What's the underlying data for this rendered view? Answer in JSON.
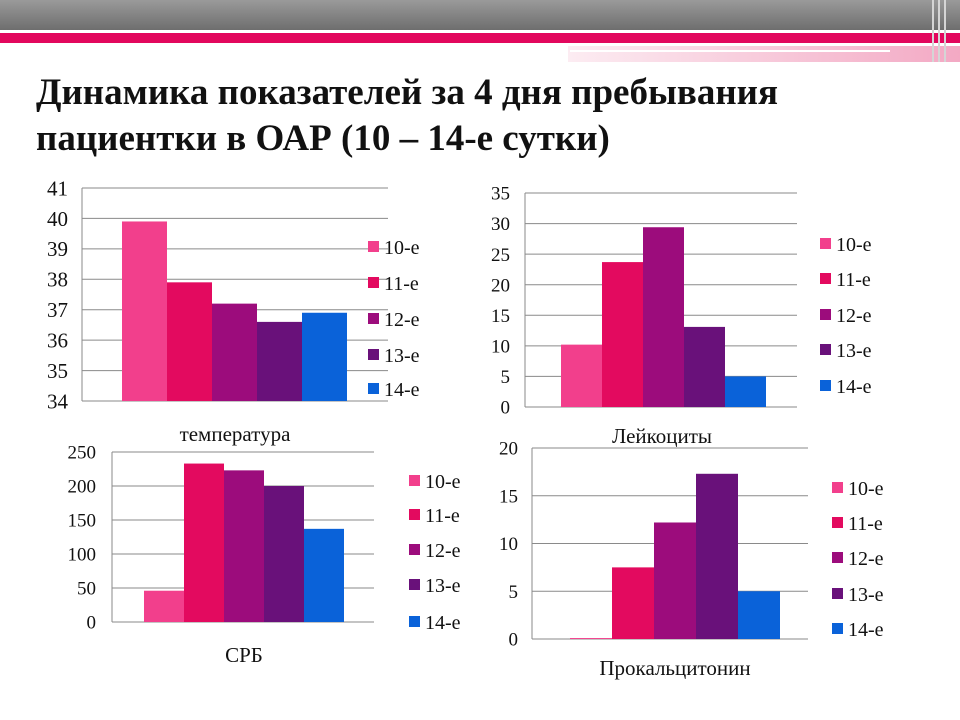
{
  "title_lines": [
    "Динамика показателей за 4 дня пребывания",
    "пациентки в ОАР (10 – 14-е сутки)"
  ],
  "colors": [
    "#f23f8c",
    "#e30a5f",
    "#9c0c7c",
    "#69117a",
    "#0a62d9"
  ],
  "chart_data": [
    {
      "type": "bar",
      "xlabel": "температура",
      "categories": [
        ""
      ],
      "ylim": [
        34,
        41
      ],
      "yticks": [
        34,
        35,
        36,
        37,
        38,
        39,
        40,
        41
      ],
      "series": [
        {
          "name": "10-е",
          "values": [
            39.9
          ]
        },
        {
          "name": "11-е",
          "values": [
            37.9
          ]
        },
        {
          "name": "12-е",
          "values": [
            37.2
          ]
        },
        {
          "name": "13-е",
          "values": [
            36.6
          ]
        },
        {
          "name": "14-е",
          "values": [
            36.9
          ]
        }
      ],
      "legend": "right"
    },
    {
      "type": "bar",
      "xlabel": "Лейкоциты",
      "categories": [
        ""
      ],
      "ylim": [
        0,
        35
      ],
      "yticks": [
        0,
        5,
        10,
        15,
        20,
        25,
        30,
        35
      ],
      "series": [
        {
          "name": "10-е",
          "values": [
            10.2
          ]
        },
        {
          "name": "11-е",
          "values": [
            23.7
          ]
        },
        {
          "name": "12-е",
          "values": [
            29.4
          ]
        },
        {
          "name": "13-е",
          "values": [
            13.1
          ]
        },
        {
          "name": "14-е",
          "values": [
            5.0
          ]
        }
      ],
      "legend": "right"
    },
    {
      "type": "bar",
      "xlabel": "СРБ",
      "categories": [
        ""
      ],
      "ylim": [
        0,
        250
      ],
      "yticks": [
        0,
        50,
        100,
        150,
        200,
        250
      ],
      "series": [
        {
          "name": "10-е",
          "values": [
            46
          ]
        },
        {
          "name": "11-е",
          "values": [
            233
          ]
        },
        {
          "name": "12-е",
          "values": [
            223
          ]
        },
        {
          "name": "13-е",
          "values": [
            200
          ]
        },
        {
          "name": "14-е",
          "values": [
            137
          ]
        }
      ],
      "legend": "right"
    },
    {
      "type": "bar",
      "xlabel": "Прокальцитонин",
      "categories": [
        ""
      ],
      "ylim": [
        0,
        20
      ],
      "yticks": [
        0,
        5,
        10,
        15,
        20
      ],
      "series": [
        {
          "name": "10-е",
          "values": [
            0.1
          ]
        },
        {
          "name": "11-е",
          "values": [
            7.5
          ]
        },
        {
          "name": "12-е",
          "values": [
            12.2
          ]
        },
        {
          "name": "13-е",
          "values": [
            17.3
          ]
        },
        {
          "name": "14-е",
          "values": [
            5.0
          ]
        }
      ],
      "legend": "right"
    }
  ]
}
